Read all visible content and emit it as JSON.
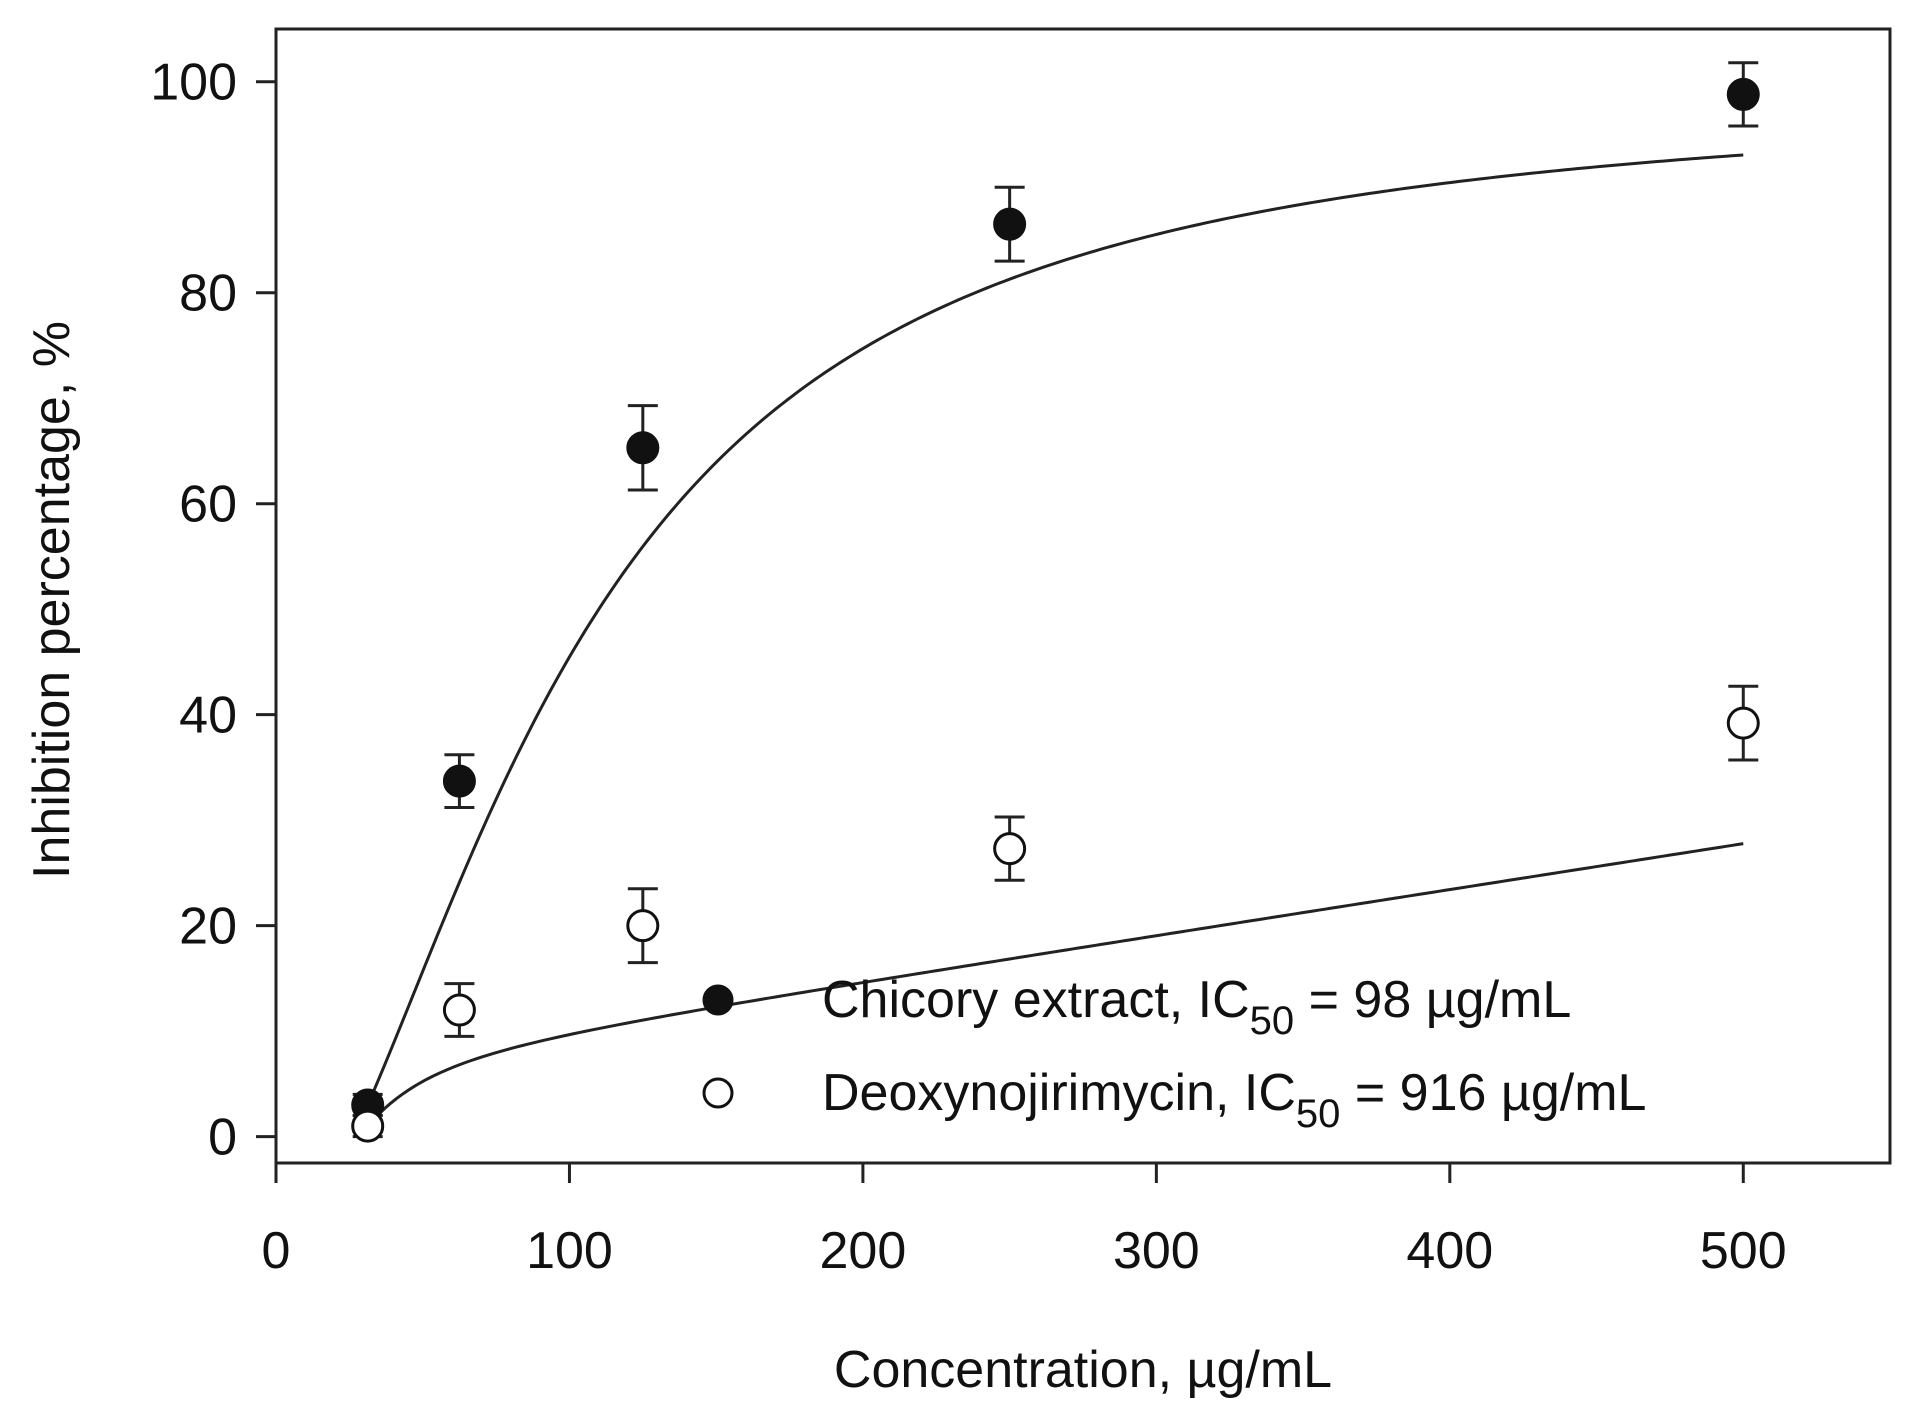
{
  "chart_data": {
    "type": "scatter",
    "title": "",
    "xlabel": "Concentration, µg/mL",
    "ylabel": "Inhibition percentage, %",
    "xlim": [
      0,
      550
    ],
    "ylim": [
      -2.5,
      105
    ],
    "x_ticks": [
      0,
      100,
      200,
      300,
      400,
      500
    ],
    "y_ticks": [
      0,
      20,
      40,
      60,
      80,
      100
    ],
    "grid": false,
    "legend_position": "bottom-right",
    "series": [
      {
        "name": "Chicory extract",
        "label_text": "Chicory extract, IC",
        "label_sub": "50",
        "label_value": " = 98 µg/mL",
        "marker": "filled-circle",
        "x": [
          31.25,
          62.5,
          125,
          250,
          500
        ],
        "y": [
          3,
          33.7,
          65.3,
          86.5,
          98.8
        ],
        "error": [
          1,
          2.5,
          4,
          3.5,
          3
        ],
        "fit": {
          "model": "hill",
          "top": 109,
          "ec50": 98,
          "hill": 1.75
        }
      },
      {
        "name": "Deoxynojirimycin",
        "label_text": "Deoxynojirimycin, IC",
        "label_sub": "50",
        "label_value": " =  916 µg/mL",
        "marker": "open-circle",
        "x": [
          31.25,
          62.5,
          125,
          250,
          500
        ],
        "y": [
          1,
          12,
          20,
          27.3,
          39.2
        ],
        "error": [
          1,
          2.5,
          3.5,
          3,
          3.5
        ],
        "fit": {
          "model": "saturating-linear",
          "a": 17,
          "k": 25,
          "n": 2.2,
          "m": 0.0434
        }
      }
    ]
  }
}
